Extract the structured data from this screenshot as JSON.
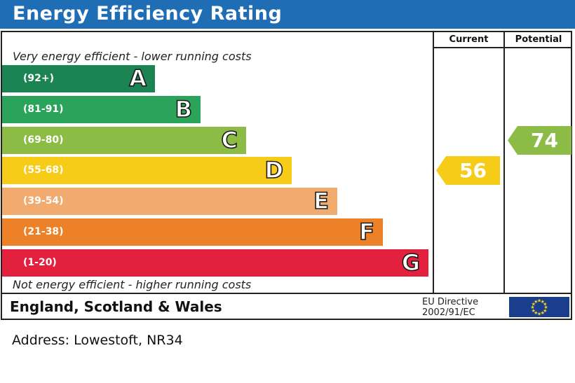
{
  "header": {
    "title": "Energy Efficiency Rating"
  },
  "columns": {
    "current": "Current",
    "potential": "Potential"
  },
  "captions": {
    "top": "Very energy efficient - lower running costs",
    "bottom": "Not energy efficient - higher running costs"
  },
  "chart_data": {
    "type": "bar",
    "title": "Energy Efficiency Rating",
    "bands": [
      {
        "letter": "A",
        "range": "(92+)",
        "min": 92,
        "max": 100,
        "color": "#1b8452"
      },
      {
        "letter": "B",
        "range": "(81-91)",
        "min": 81,
        "max": 91,
        "color": "#2ca35a"
      },
      {
        "letter": "C",
        "range": "(69-80)",
        "min": 69,
        "max": 80,
        "color": "#8cbc45"
      },
      {
        "letter": "D",
        "range": "(55-68)",
        "min": 55,
        "max": 68,
        "color": "#f7cc18"
      },
      {
        "letter": "E",
        "range": "(39-54)",
        "min": 39,
        "max": 54,
        "color": "#f1ab6f"
      },
      {
        "letter": "F",
        "range": "(21-38)",
        "min": 21,
        "max": 38,
        "color": "#ec8128"
      },
      {
        "letter": "G",
        "range": "(1-20)",
        "min": 1,
        "max": 20,
        "color": "#e3203e"
      }
    ],
    "current": {
      "value": 56,
      "band": "D",
      "color": "#f7cc18"
    },
    "potential": {
      "value": 74,
      "band": "C",
      "color": "#8cbc45"
    }
  },
  "footer": {
    "region": "England, Scotland & Wales",
    "directive_line1": "EU Directive",
    "directive_line2": "2002/91/EC"
  },
  "address": "Address: Lowestoft, NR34"
}
